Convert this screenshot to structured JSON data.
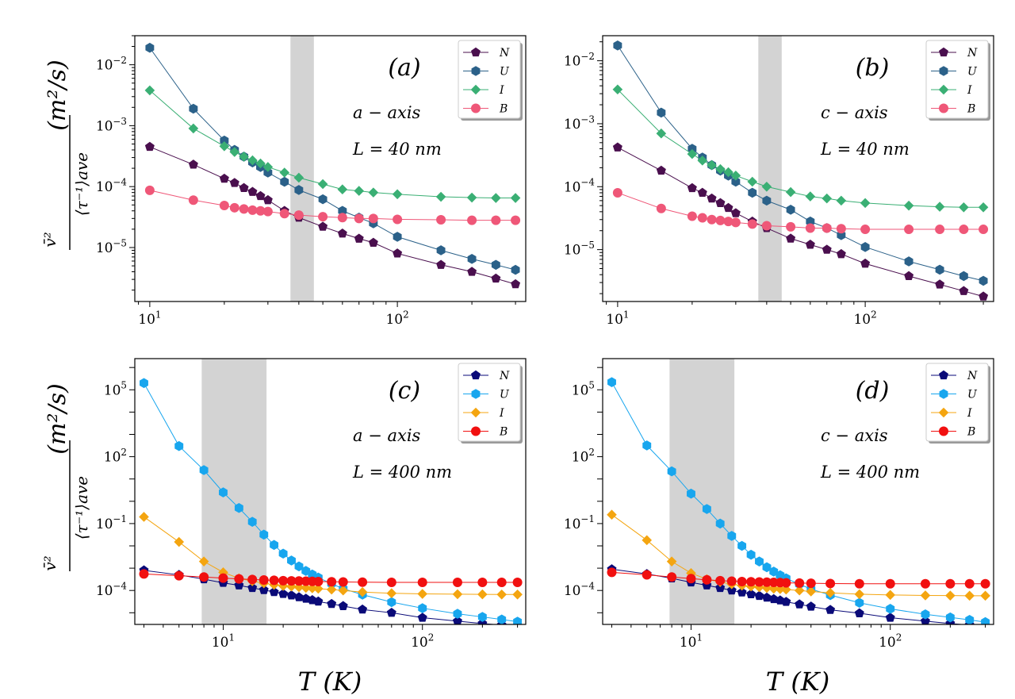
{
  "figure": {
    "ylabel_frac_num": "v̄²",
    "ylabel_frac_den": "⟨τ⁻¹⟩ave",
    "ylabel_units": "(m²/s)",
    "xlabel": "T (K)"
  },
  "legend_labels": [
    "N",
    "U",
    "I",
    "B"
  ],
  "chart_data": [
    {
      "type": "line",
      "panel_label": "(a)",
      "axis_text": "a − axis",
      "length_text": "L = 40 nm",
      "xscale": "log",
      "yscale": "log",
      "xlim": [
        8.7,
        330
      ],
      "ylim": [
        1.3e-06,
        0.03
      ],
      "xticks": [
        {
          "v": 10,
          "b": "10",
          "e": "1"
        },
        {
          "v": 100,
          "b": "10",
          "e": "2"
        }
      ],
      "yticks": [
        {
          "v": 1e-05,
          "b": "10",
          "e": "−5"
        },
        {
          "v": 0.0001,
          "b": "10",
          "e": "−4"
        },
        {
          "v": 0.001,
          "b": "10",
          "e": "−3"
        },
        {
          "v": 0.01,
          "b": "10",
          "e": "−2"
        }
      ],
      "shaded_region_T": [
        37,
        46
      ],
      "legend_position": "top-right",
      "x": [
        10,
        15,
        20,
        22,
        24,
        26,
        28,
        30,
        35,
        40,
        50,
        60,
        70,
        80,
        100,
        150,
        200,
        250,
        300
      ],
      "series": [
        {
          "name": "N",
          "color": "#4a0f4e",
          "marker": "pentagon",
          "values": [
            0.00045,
            0.00023,
            0.000135,
            0.000115,
            9.5e-05,
            8.2e-05,
            7e-05,
            6e-05,
            4e-05,
            3.1e-05,
            2.2e-05,
            1.7e-05,
            1.4e-05,
            1.2e-05,
            8e-06,
            5.2e-06,
            4e-06,
            3.1e-06,
            2.5e-06
          ]
        },
        {
          "name": "U",
          "color": "#2b6189",
          "marker": "hexagon",
          "values": [
            0.019,
            0.0019,
            0.00057,
            0.0004,
            0.00031,
            0.00025,
            0.00021,
            0.00017,
            0.00012,
            8.8e-05,
            6.2e-05,
            4e-05,
            3.1e-05,
            2.5e-05,
            1.5e-05,
            9e-06,
            6.5e-06,
            5.2e-06,
            4.3e-06
          ]
        },
        {
          "name": "I",
          "color": "#3aaf74",
          "marker": "diamond",
          "values": [
            0.0038,
            0.0009,
            0.00046,
            0.00037,
            0.00031,
            0.00027,
            0.00024,
            0.00021,
            0.00017,
            0.00014,
            0.00011,
            9e-05,
            8.5e-05,
            8e-05,
            7.5e-05,
            6.8e-05,
            6.6e-05,
            6.5e-05,
            6.5e-05
          ]
        },
        {
          "name": "B",
          "color": "#ef5778",
          "marker": "circle",
          "values": [
            8.7e-05,
            6e-05,
            4.9e-05,
            4.5e-05,
            4.3e-05,
            4.1e-05,
            4e-05,
            3.9e-05,
            3.6e-05,
            3.4e-05,
            3.2e-05,
            3.1e-05,
            3e-05,
            3e-05,
            2.9e-05,
            2.85e-05,
            2.8e-05,
            2.8e-05,
            2.8e-05
          ]
        }
      ]
    },
    {
      "type": "line",
      "panel_label": "(b)",
      "axis_text": "c − axis",
      "length_text": "L = 40 nm",
      "xscale": "log",
      "yscale": "log",
      "xlim": [
        8.7,
        330
      ],
      "ylim": [
        1.5e-06,
        0.025
      ],
      "xticks": [
        {
          "v": 10,
          "b": "10",
          "e": "1"
        },
        {
          "v": 100,
          "b": "10",
          "e": "2"
        }
      ],
      "yticks": [
        {
          "v": 1e-05,
          "b": "10",
          "e": "−5"
        },
        {
          "v": 0.0001,
          "b": "10",
          "e": "−4"
        },
        {
          "v": 0.001,
          "b": "10",
          "e": "−3"
        },
        {
          "v": 0.01,
          "b": "10",
          "e": "−2"
        }
      ],
      "shaded_region_T": [
        37,
        46
      ],
      "legend_position": "top-right",
      "x": [
        10,
        15,
        20,
        22,
        24,
        26,
        28,
        30,
        35,
        40,
        50,
        60,
        70,
        80,
        100,
        150,
        200,
        250,
        300
      ],
      "series": [
        {
          "name": "N",
          "color": "#4a0f4e",
          "marker": "pentagon",
          "values": [
            0.00042,
            0.00018,
            9.5e-05,
            8e-05,
            6.5e-05,
            5.5e-05,
            4.6e-05,
            3.8e-05,
            2.8e-05,
            2.2e-05,
            1.5e-05,
            1.2e-05,
            1e-05,
            8.5e-06,
            6e-06,
            3.8e-06,
            2.8e-06,
            2.2e-06,
            1.8e-06
          ]
        },
        {
          "name": "U",
          "color": "#2b6189",
          "marker": "hexagon",
          "values": [
            0.0175,
            0.0015,
            0.0004,
            0.00029,
            0.00022,
            0.00018,
            0.00015,
            0.00012,
            8e-05,
            6e-05,
            4.3e-05,
            2.8e-05,
            2.2e-05,
            1.7e-05,
            1.1e-05,
            6.5e-06,
            4.8e-06,
            3.8e-06,
            3.2e-06
          ]
        },
        {
          "name": "I",
          "color": "#3aaf74",
          "marker": "diamond",
          "values": [
            0.0035,
            0.0007,
            0.00033,
            0.00026,
            0.00022,
            0.00019,
            0.00017,
            0.00015,
            0.00012,
            0.0001,
            8.2e-05,
            7e-05,
            6.5e-05,
            6e-05,
            5.5e-05,
            5e-05,
            4.8e-05,
            4.7e-05,
            4.7e-05
          ]
        },
        {
          "name": "B",
          "color": "#ef5778",
          "marker": "circle",
          "values": [
            8e-05,
            4.5e-05,
            3.4e-05,
            3.2e-05,
            3e-05,
            2.9e-05,
            2.8e-05,
            2.7e-05,
            2.55e-05,
            2.4e-05,
            2.3e-05,
            2.2e-05,
            2.2e-05,
            2.15e-05,
            2.1e-05,
            2.1e-05,
            2.1e-05,
            2.1e-05,
            2.1e-05
          ]
        }
      ]
    },
    {
      "type": "line",
      "panel_label": "(c)",
      "axis_text": "a − axis",
      "length_text": "L = 400 nm",
      "xscale": "log",
      "yscale": "log",
      "xlim": [
        3.6,
        330
      ],
      "ylim": [
        3e-06,
        2500000.0
      ],
      "xticks": [
        {
          "v": 10,
          "b": "10",
          "e": "1"
        },
        {
          "v": 100,
          "b": "10",
          "e": "2"
        }
      ],
      "yticks": [
        {
          "v": 0.0001,
          "b": "10",
          "e": "−4"
        },
        {
          "v": 0.1,
          "b": "10",
          "e": "−1"
        },
        {
          "v": 100.0,
          "b": "10",
          "e": "2"
        },
        {
          "v": 100000.0,
          "b": "10",
          "e": "5"
        }
      ],
      "shaded_region_T": [
        7.8,
        16.5
      ],
      "legend_position": "top-right",
      "x": [
        4,
        6,
        8,
        10,
        12,
        14,
        16,
        18,
        20,
        22,
        24,
        26,
        28,
        30,
        35,
        40,
        50,
        70,
        100,
        150,
        200,
        250,
        300
      ],
      "series": [
        {
          "name": "N",
          "color": "#0a0a78",
          "marker": "pentagon",
          "values": [
            0.0008,
            0.0005,
            0.00032,
            0.00022,
            0.00017,
            0.00013,
            0.000105,
            8.5e-05,
            7e-05,
            6e-05,
            5e-05,
            4.3e-05,
            3.7e-05,
            3.2e-05,
            2.5e-05,
            2e-05,
            1.4e-05,
            1e-05,
            6e-06,
            4.2e-06,
            3.3e-06,
            2.8e-06,
            2.5e-06
          ]
        },
        {
          "name": "U",
          "color": "#18a6ee",
          "marker": "hexagon",
          "values": [
            200000.0,
            300,
            25,
            2.5,
            0.5,
            0.12,
            0.032,
            0.011,
            0.0045,
            0.0022,
            0.0012,
            0.00075,
            0.00052,
            0.00038,
            0.0002,
            0.00012,
            6.5e-05,
            3e-05,
            1.6e-05,
            9e-06,
            6.5e-06,
            5e-06,
            4e-06
          ]
        },
        {
          "name": "I",
          "color": "#f4a510",
          "marker": "diamond",
          "values": [
            0.2,
            0.015,
            0.002,
            0.00065,
            0.00035,
            0.00026,
            0.00021,
            0.00018,
            0.00016,
            0.00015,
            0.00014,
            0.00013,
            0.000125,
            0.00012,
            0.00011,
            0.0001,
            8.5e-05,
            7.5e-05,
            7e-05,
            6.8e-05,
            6.7e-05,
            6.6e-05,
            6.6e-05
          ]
        },
        {
          "name": "B",
          "color": "#f11010",
          "marker": "circle",
          "values": [
            0.00055,
            0.00046,
            0.0004,
            0.00036,
            0.00033,
            0.00031,
            0.000295,
            0.000285,
            0.000275,
            0.00027,
            0.000265,
            0.00026,
            0.000255,
            0.00025,
            0.000245,
            0.00024,
            0.000235,
            0.00023,
            0.00023,
            0.00023,
            0.00023,
            0.00023,
            0.00023
          ]
        }
      ]
    },
    {
      "type": "line",
      "panel_label": "(d)",
      "axis_text": "c − axis",
      "length_text": "L = 400 nm",
      "xscale": "log",
      "yscale": "log",
      "xlim": [
        3.6,
        330
      ],
      "ylim": [
        3e-06,
        2500000.0
      ],
      "xticks": [
        {
          "v": 10,
          "b": "10",
          "e": "1"
        },
        {
          "v": 100,
          "b": "10",
          "e": "2"
        }
      ],
      "yticks": [
        {
          "v": 0.0001,
          "b": "10",
          "e": "−4"
        },
        {
          "v": 0.1,
          "b": "10",
          "e": "−1"
        },
        {
          "v": 100.0,
          "b": "10",
          "e": "2"
        },
        {
          "v": 100000.0,
          "b": "10",
          "e": "5"
        }
      ],
      "shaded_region_T": [
        7.8,
        16.5
      ],
      "legend_position": "top-right",
      "x": [
        4,
        6,
        8,
        10,
        12,
        14,
        16,
        18,
        20,
        22,
        24,
        26,
        28,
        30,
        35,
        40,
        50,
        70,
        100,
        150,
        200,
        250,
        300
      ],
      "series": [
        {
          "name": "N",
          "color": "#0a0a78",
          "marker": "pentagon",
          "values": [
            0.0009,
            0.00055,
            0.00035,
            0.00023,
            0.00017,
            0.00013,
            0.0001,
            8.2e-05,
            6.8e-05,
            5.7e-05,
            4.8e-05,
            4.1e-05,
            3.6e-05,
            3.1e-05,
            2.4e-05,
            1.9e-05,
            1.35e-05,
            9.5e-06,
            6e-06,
            4.2e-06,
            3.3e-06,
            2.8e-06,
            2.5e-06
          ]
        },
        {
          "name": "U",
          "color": "#18a6ee",
          "marker": "hexagon",
          "values": [
            220000.0,
            320,
            22,
            2.2,
            0.45,
            0.1,
            0.028,
            0.01,
            0.004,
            0.002,
            0.0011,
            0.0007,
            0.00048,
            0.00035,
            0.00019,
            0.000115,
            6.2e-05,
            2.8e-05,
            1.5e-05,
            8.5e-06,
            6.2e-06,
            4.8e-06,
            3.8e-06
          ]
        },
        {
          "name": "I",
          "color": "#f4a510",
          "marker": "diamond",
          "values": [
            0.25,
            0.018,
            0.002,
            0.0006,
            0.00032,
            0.00024,
            0.00019,
            0.000165,
            0.00015,
            0.00014,
            0.00013,
            0.00012,
            0.000115,
            0.00011,
            0.0001,
            9e-05,
            7.8e-05,
            6.8e-05,
            6.3e-05,
            6e-05,
            5.9e-05,
            5.8e-05,
            5.8e-05
          ]
        },
        {
          "name": "B",
          "color": "#f11010",
          "marker": "circle",
          "values": [
            0.00065,
            0.0005,
            0.0004,
            0.00034,
            0.0003,
            0.000275,
            0.00026,
            0.00025,
            0.000245,
            0.00024,
            0.000235,
            0.00023,
            0.000225,
            0.00022,
            0.000215,
            0.00021,
            0.000205,
            0.0002,
            0.0002,
            0.0002,
            0.0002,
            0.0002,
            0.0002
          ]
        }
      ]
    }
  ]
}
